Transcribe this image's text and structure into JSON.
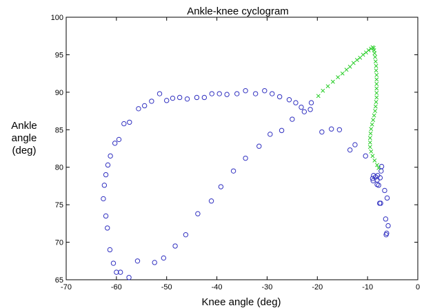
{
  "chart_data": {
    "type": "scatter",
    "title": "Ankle-knee cyclogram",
    "xlabel": "Knee angle (deg)",
    "ylabel": [
      "Ankle",
      "angle",
      "(deg)"
    ],
    "xlim": [
      -70,
      0
    ],
    "ylim": [
      65,
      100
    ],
    "xticks": [
      -70,
      -60,
      -50,
      -40,
      -30,
      -20,
      -10,
      0
    ],
    "yticks": [
      65,
      70,
      75,
      80,
      85,
      90,
      95,
      100
    ],
    "grid": false,
    "legend": "none",
    "series": [
      {
        "marker": "circle",
        "color": "#3030c0",
        "points": [
          [
            -6.3,
            71.0
          ],
          [
            -6.2,
            71.2
          ],
          [
            -5.9,
            72.2
          ],
          [
            -6.4,
            73.1
          ],
          [
            -6.1,
            75.9
          ],
          [
            -6.6,
            76.9
          ],
          [
            -7.4,
            75.2
          ],
          [
            -7.6,
            75.2
          ],
          [
            -7.8,
            77.6
          ],
          [
            -8.1,
            77.7
          ],
          [
            -8.1,
            78.3
          ],
          [
            -7.5,
            78.6
          ],
          [
            -8.0,
            78.9
          ],
          [
            -8.4,
            78.7
          ],
          [
            -8.8,
            78.9
          ],
          [
            -9.0,
            78.5
          ],
          [
            -8.9,
            78.2
          ],
          [
            -7.3,
            79.5
          ],
          [
            -7.2,
            80.1
          ],
          [
            -10.4,
            81.5
          ],
          [
            -12.5,
            83.0
          ],
          [
            -13.5,
            82.3
          ],
          [
            -15.6,
            85.0
          ],
          [
            -17.2,
            85.1
          ],
          [
            -19.1,
            84.7
          ],
          [
            -21.2,
            88.6
          ],
          [
            -21.4,
            87.7
          ],
          [
            -22.6,
            87.4
          ],
          [
            -23.2,
            88.0
          ],
          [
            -24.3,
            88.6
          ],
          [
            -25.6,
            89.0
          ],
          [
            -27.5,
            89.4
          ],
          [
            -29.0,
            89.8
          ],
          [
            -30.5,
            90.2
          ],
          [
            -32.3,
            89.8
          ],
          [
            -34.3,
            90.2
          ],
          [
            -36.0,
            89.8
          ],
          [
            -38.0,
            89.7
          ],
          [
            -39.5,
            89.8
          ],
          [
            -41.0,
            89.8
          ],
          [
            -42.5,
            89.3
          ],
          [
            -44.0,
            89.3
          ],
          [
            -45.9,
            89.1
          ],
          [
            -47.4,
            89.3
          ],
          [
            -48.8,
            89.2
          ],
          [
            -50.0,
            88.9
          ],
          [
            -51.4,
            89.8
          ],
          [
            -53.0,
            88.8
          ],
          [
            -54.4,
            88.2
          ],
          [
            -55.6,
            87.8
          ],
          [
            -57.4,
            86.0
          ],
          [
            -58.5,
            85.8
          ],
          [
            -59.5,
            83.7
          ],
          [
            -60.3,
            83.2
          ],
          [
            -61.2,
            81.5
          ],
          [
            -61.7,
            80.3
          ],
          [
            -62.1,
            79.0
          ],
          [
            -62.4,
            77.6
          ],
          [
            -62.6,
            75.8
          ],
          [
            -62.1,
            73.5
          ],
          [
            -61.8,
            71.9
          ],
          [
            -61.3,
            69.0
          ],
          [
            -60.6,
            67.2
          ],
          [
            -60.0,
            66.0
          ],
          [
            -59.2,
            66.0
          ],
          [
            -57.5,
            65.3
          ],
          [
            -55.8,
            67.5
          ],
          [
            -52.4,
            67.3
          ],
          [
            -50.6,
            67.9
          ],
          [
            -48.3,
            69.5
          ],
          [
            -46.2,
            71.0
          ],
          [
            -43.8,
            73.8
          ],
          [
            -41.1,
            75.5
          ],
          [
            -39.2,
            77.4
          ],
          [
            -36.7,
            79.5
          ],
          [
            -34.3,
            81.2
          ],
          [
            -31.6,
            82.8
          ],
          [
            -29.4,
            84.4
          ],
          [
            -27.1,
            84.9
          ],
          [
            -25.0,
            86.4
          ]
        ]
      },
      {
        "marker": "cross",
        "color": "#22cc22",
        "points": [
          [
            -19.8,
            89.5
          ],
          [
            -18.9,
            90.2
          ],
          [
            -17.9,
            90.8
          ],
          [
            -16.9,
            91.4
          ],
          [
            -15.9,
            92.0
          ],
          [
            -15.0,
            92.5
          ],
          [
            -14.2,
            93.0
          ],
          [
            -13.5,
            93.4
          ],
          [
            -12.8,
            93.9
          ],
          [
            -12.1,
            94.3
          ],
          [
            -11.5,
            94.6
          ],
          [
            -10.9,
            95.0
          ],
          [
            -10.3,
            95.3
          ],
          [
            -9.8,
            95.6
          ],
          [
            -9.3,
            95.8
          ],
          [
            -9.0,
            96.0
          ],
          [
            -8.8,
            95.9
          ],
          [
            -8.7,
            95.6
          ],
          [
            -8.6,
            95.2
          ],
          [
            -8.5,
            94.7
          ],
          [
            -8.4,
            94.1
          ],
          [
            -8.3,
            93.5
          ],
          [
            -8.3,
            92.9
          ],
          [
            -8.2,
            92.3
          ],
          [
            -8.2,
            91.7
          ],
          [
            -8.2,
            91.1
          ],
          [
            -8.2,
            90.5
          ],
          [
            -8.2,
            89.9
          ],
          [
            -8.2,
            89.3
          ],
          [
            -8.3,
            88.7
          ],
          [
            -8.4,
            88.1
          ],
          [
            -8.5,
            87.5
          ],
          [
            -8.7,
            86.9
          ],
          [
            -8.9,
            86.3
          ],
          [
            -9.1,
            85.7
          ],
          [
            -9.3,
            85.1
          ],
          [
            -9.4,
            84.5
          ],
          [
            -9.5,
            83.9
          ],
          [
            -9.5,
            83.3
          ],
          [
            -9.5,
            82.7
          ],
          [
            -9.3,
            82.1
          ],
          [
            -9.0,
            81.5
          ],
          [
            -8.6,
            80.9
          ],
          [
            -8.1,
            80.3
          ],
          [
            -7.8,
            79.9
          ]
        ]
      }
    ]
  }
}
